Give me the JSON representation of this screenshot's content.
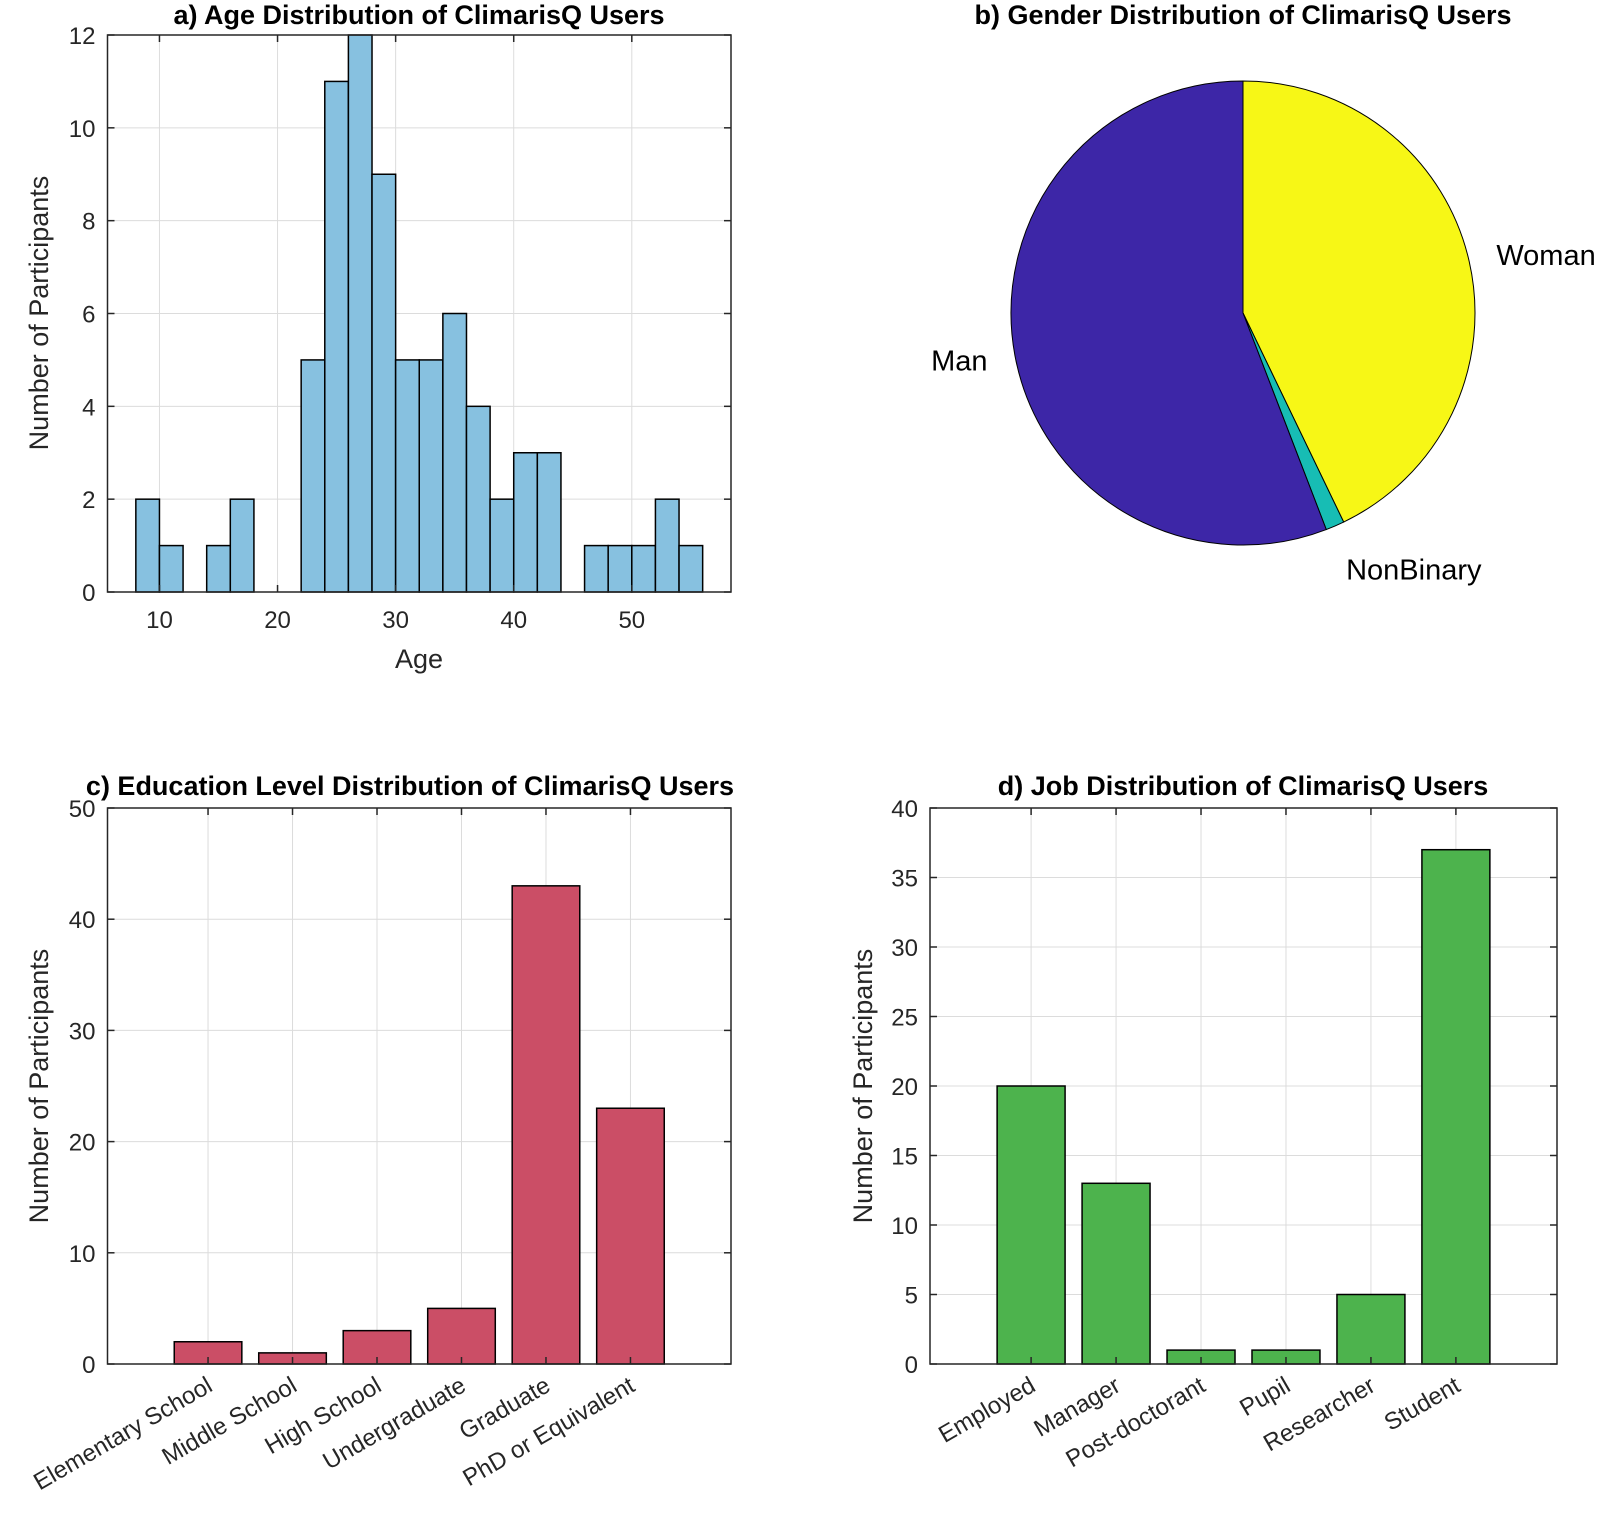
{
  "chart_data": [
    {
      "id": "age",
      "type": "bar",
      "subtype": "histogram",
      "title": "a) Age Distribution of ClimarisQ Users",
      "xlabel": "Age",
      "ylabel": "Number of Participants",
      "bin_edges": [
        8,
        10,
        12,
        14,
        16,
        18,
        20,
        22,
        24,
        26,
        28,
        30,
        32,
        34,
        36,
        38,
        40,
        42,
        44,
        46,
        48,
        50,
        52,
        54,
        56
      ],
      "values": [
        2,
        1,
        0,
        1,
        2,
        0,
        0,
        5,
        11,
        12,
        9,
        5,
        5,
        6,
        4,
        2,
        3,
        3,
        0,
        1,
        1,
        1,
        2,
        1
      ],
      "xlim": [
        5.6,
        58.4
      ],
      "ylim": [
        0,
        12
      ],
      "xticks": [
        10,
        20,
        30,
        40,
        50
      ],
      "yticks": [
        0,
        2,
        4,
        6,
        8,
        10,
        12
      ],
      "grid": true,
      "color": "#87c1e0"
    },
    {
      "id": "gender",
      "type": "pie",
      "title": "b) Gender Distribution of ClimarisQ Users",
      "categories": [
        "Woman",
        "NonBinary",
        "Man"
      ],
      "values": [
        33,
        1,
        43
      ],
      "colors": [
        "#f7f716",
        "#17bdb4",
        "#3d26a7"
      ]
    },
    {
      "id": "education",
      "type": "bar",
      "title": "c) Education Level Distribution of ClimarisQ Users",
      "xlabel": "",
      "ylabel": "Number of Participants",
      "categories": [
        "Elementary School",
        "Middle School",
        "High School",
        "Undergraduate",
        "Graduate",
        "PhD or Equivalent"
      ],
      "values": [
        2,
        1,
        3,
        5,
        43,
        23
      ],
      "ylim": [
        0,
        50
      ],
      "yticks": [
        0,
        10,
        20,
        30,
        40,
        50
      ],
      "grid": true,
      "color": "#cb4e66"
    },
    {
      "id": "job",
      "type": "bar",
      "title": "d) Job Distribution of ClimarisQ Users",
      "xlabel": "",
      "ylabel": "Number of Participants",
      "categories": [
        "Employed",
        "Manager",
        "Post-doctorant",
        "Pupil",
        "Researcher",
        "Student"
      ],
      "values": [
        20,
        13,
        1,
        1,
        5,
        37
      ],
      "ylim": [
        0,
        40
      ],
      "yticks": [
        0,
        5,
        10,
        15,
        20,
        25,
        30,
        35,
        40
      ],
      "grid": true,
      "color": "#4db34d"
    }
  ]
}
